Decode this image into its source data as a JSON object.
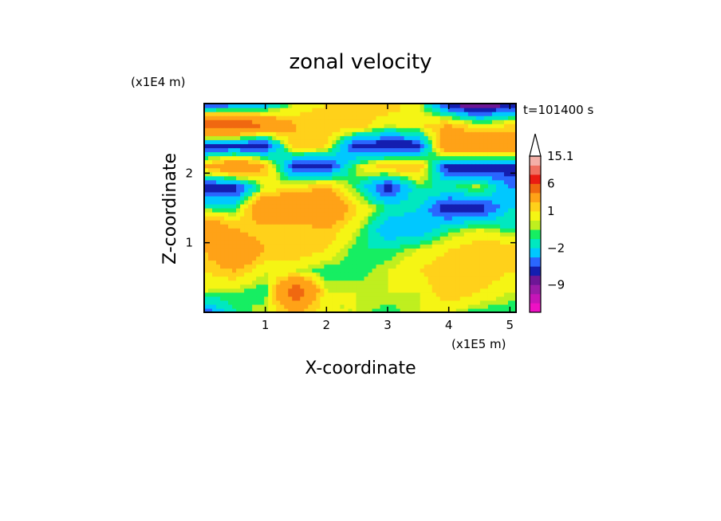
{
  "chart_data": {
    "type": "heatmap",
    "title": "zonal velocity",
    "xlabel": "X-coordinate",
    "ylabel": "Z-coordinate",
    "x_unit_label": "(x1E5 m)",
    "y_unit_label": "(x1E4 m)",
    "time_label": "t=101400 s",
    "x_ticks": [
      1,
      2,
      3,
      4,
      5
    ],
    "y_ticks": [
      1,
      2
    ],
    "xlim": [
      0,
      5.1
    ],
    "ylim": [
      0,
      3.0
    ],
    "colorbar": {
      "label_values": [
        "15.1",
        "6",
        "1",
        "-2",
        "-9"
      ],
      "bands": [
        {
          "value": -15,
          "color": "#ee11c4"
        },
        {
          "value": -12,
          "color": "#c615b8"
        },
        {
          "value": -9,
          "color": "#9a1ca8"
        },
        {
          "value": -6,
          "color": "#6e1696"
        },
        {
          "value": -4,
          "color": "#141eb0"
        },
        {
          "value": -3,
          "color": "#2a66ff"
        },
        {
          "value": -2,
          "color": "#00c8ff"
        },
        {
          "value": -1,
          "color": "#00e8c0"
        },
        {
          "value": 0,
          "color": "#16ee62"
        },
        {
          "value": 0.5,
          "color": "#bfef1f"
        },
        {
          "value": 1,
          "color": "#f5f514"
        },
        {
          "value": 2,
          "color": "#ffd11a"
        },
        {
          "value": 3,
          "color": "#ffa217"
        },
        {
          "value": 6,
          "color": "#f06810"
        },
        {
          "value": 9,
          "color": "#ea1c12"
        },
        {
          "value": 12,
          "color": "#f07060"
        },
        {
          "value": 15.1,
          "color": "#f4b0a8"
        }
      ],
      "extend_top_color": "#ffffff"
    },
    "field": {
      "z_cols": [
        0.0,
        0.3,
        0.6,
        0.9,
        1.2,
        1.5,
        1.8,
        2.1,
        2.4,
        2.7,
        3.0
      ],
      "x_rows": [
        0.0,
        0.5,
        1.0,
        1.5,
        2.0,
        2.5,
        3.0,
        3.5,
        4.0,
        4.5,
        5.0
      ],
      "values": [
        [
          -3,
          1,
          2,
          3,
          6,
          0,
          -4,
          3,
          -4,
          9,
          -4
        ],
        [
          0,
          0.5,
          3,
          6,
          3,
          0,
          -4,
          6,
          -4,
          9,
          -3
        ],
        [
          1,
          0,
          1,
          3,
          2,
          6,
          1,
          3,
          -4,
          6,
          -2
        ],
        [
          3,
          9,
          1,
          3,
          2,
          6,
          2,
          -4,
          3,
          3,
          1
        ],
        [
          1,
          1,
          0,
          2,
          3,
          6,
          3,
          -4,
          2,
          3,
          2
        ],
        [
          1,
          1,
          0,
          0,
          1,
          2,
          0,
          1,
          -4,
          3,
          2
        ],
        [
          0,
          1,
          1,
          0,
          -2,
          0,
          -4,
          3,
          -4,
          1,
          3
        ],
        [
          1,
          1,
          2,
          1,
          -2,
          -1,
          0,
          3,
          -4,
          2,
          1
        ],
        [
          1,
          3,
          3,
          2,
          0,
          -4,
          0,
          -4,
          6,
          3,
          -4
        ],
        [
          0,
          2,
          3,
          3,
          1,
          -4,
          1,
          -4,
          6,
          1,
          -6
        ],
        [
          0,
          1,
          2,
          3,
          0,
          -1,
          -2,
          -4,
          6,
          2,
          -4
        ]
      ]
    }
  }
}
